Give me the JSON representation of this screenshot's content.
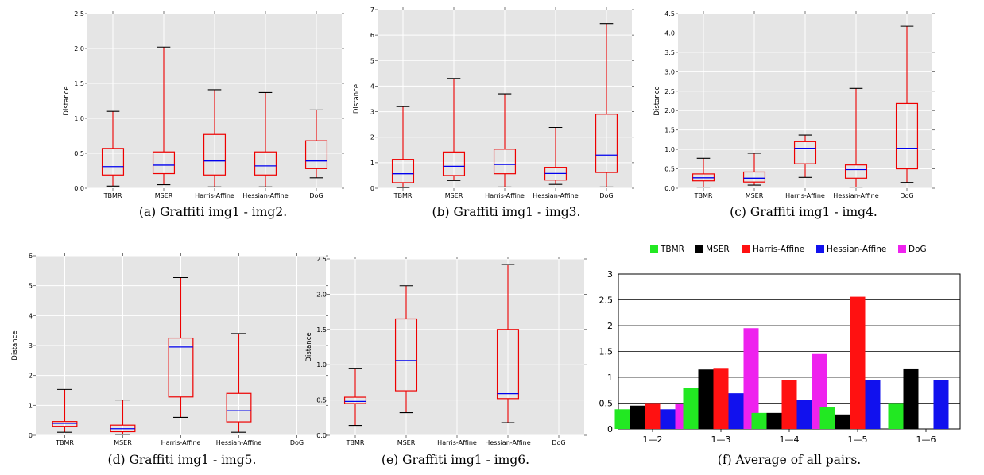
{
  "chart_data": [
    {
      "id": "a",
      "type": "box",
      "caption": "(a) Graffiti img1 - img2.",
      "ylabel": "Distance",
      "ylim": [
        0,
        2.5
      ],
      "yticks": [
        "0.0",
        "0.5",
        "1.0",
        "1.5",
        "2.0",
        "2.5"
      ],
      "categories": [
        "TBMR",
        "MSER",
        "Harris-Affine",
        "Hessian-Affine",
        "DoG"
      ],
      "boxes": [
        {
          "min": 0.03,
          "q1": 0.19,
          "median": 0.31,
          "q3": 0.57,
          "max": 1.1
        },
        {
          "min": 0.05,
          "q1": 0.21,
          "median": 0.33,
          "q3": 0.52,
          "max": 2.02
        },
        {
          "min": 0.02,
          "q1": 0.19,
          "median": 0.39,
          "q3": 0.77,
          "max": 1.41
        },
        {
          "min": 0.02,
          "q1": 0.19,
          "median": 0.32,
          "q3": 0.52,
          "max": 1.37
        },
        {
          "min": 0.15,
          "q1": 0.28,
          "median": 0.39,
          "q3": 0.68,
          "max": 1.12
        }
      ]
    },
    {
      "id": "b",
      "type": "box",
      "caption": "(b) Graffiti img1 - img3.",
      "ylabel": "Distance",
      "ylim": [
        0,
        7
      ],
      "yticks": [
        "0",
        "1",
        "2",
        "3",
        "4",
        "5",
        "6",
        "7"
      ],
      "categories": [
        "TBMR",
        "MSER",
        "Harris-Affine",
        "Hessian-Affine",
        "DoG"
      ],
      "boxes": [
        {
          "min": 0.03,
          "q1": 0.22,
          "median": 0.57,
          "q3": 1.13,
          "max": 3.2
        },
        {
          "min": 0.3,
          "q1": 0.5,
          "median": 0.86,
          "q3": 1.42,
          "max": 4.3
        },
        {
          "min": 0.05,
          "q1": 0.57,
          "median": 0.93,
          "q3": 1.53,
          "max": 3.7
        },
        {
          "min": 0.15,
          "q1": 0.32,
          "median": 0.58,
          "q3": 0.82,
          "max": 2.38
        },
        {
          "min": 0.05,
          "q1": 0.62,
          "median": 1.3,
          "q3": 2.9,
          "max": 6.45
        }
      ]
    },
    {
      "id": "c",
      "type": "box",
      "caption": "(c) Graffiti img1 - img4.",
      "ylabel": "Distance",
      "ylim": [
        0,
        4.5
      ],
      "yticks": [
        "0.0",
        "0.5",
        "1.0",
        "1.5",
        "2.0",
        "2.5",
        "3.0",
        "3.5",
        "4.0",
        "4.5"
      ],
      "categories": [
        "TBMR",
        "MSER",
        "Harris-Affine",
        "Hessian-Affine",
        "DoG"
      ],
      "boxes": [
        {
          "min": 0.03,
          "q1": 0.19,
          "median": 0.27,
          "q3": 0.37,
          "max": 0.77
        },
        {
          "min": 0.08,
          "q1": 0.16,
          "median": 0.26,
          "q3": 0.42,
          "max": 0.9
        },
        {
          "min": 0.28,
          "q1": 0.63,
          "median": 1.03,
          "q3": 1.2,
          "max": 1.37
        },
        {
          "min": 0.03,
          "q1": 0.26,
          "median": 0.48,
          "q3": 0.6,
          "max": 2.57
        },
        {
          "min": 0.15,
          "q1": 0.5,
          "median": 1.03,
          "q3": 2.18,
          "max": 4.17
        }
      ]
    },
    {
      "id": "d",
      "type": "box",
      "caption": "(d) Graffiti img1 - img5.",
      "ylabel": "Distance",
      "ylim": [
        0,
        6
      ],
      "yticks": [
        "0",
        "1",
        "2",
        "3",
        "4",
        "5",
        "6"
      ],
      "categories": [
        "TBMR",
        "MSER",
        "Harris-Affine",
        "Hessian-Affine",
        "DoG"
      ],
      "boxes": [
        {
          "min": 0.1,
          "q1": 0.3,
          "median": 0.4,
          "q3": 0.46,
          "max": 1.53
        },
        {
          "min": 0.03,
          "q1": 0.12,
          "median": 0.22,
          "q3": 0.34,
          "max": 1.18
        },
        {
          "min": 0.6,
          "q1": 1.28,
          "median": 2.95,
          "q3": 3.25,
          "max": 5.27
        },
        {
          "min": 0.1,
          "q1": 0.45,
          "median": 0.82,
          "q3": 1.4,
          "max": 3.4
        },
        null
      ]
    },
    {
      "id": "e",
      "type": "box",
      "caption": "(e) Graffiti img1 - img6.",
      "ylabel": "Distance",
      "ylim": [
        0,
        2.5
      ],
      "yticks": [
        "0.0",
        "0.5",
        "1.0",
        "1.5",
        "2.0",
        "2.5"
      ],
      "categories": [
        "TBMR",
        "MSER",
        "Harris-Affine",
        "Hessian-Affine",
        "DoG"
      ],
      "boxes": [
        {
          "min": 0.14,
          "q1": 0.45,
          "median": 0.48,
          "q3": 0.54,
          "max": 0.95
        },
        {
          "min": 0.32,
          "q1": 0.63,
          "median": 1.06,
          "q3": 1.65,
          "max": 2.12
        },
        null,
        {
          "min": 0.18,
          "q1": 0.52,
          "median": 0.59,
          "q3": 1.5,
          "max": 2.42
        },
        null
      ]
    },
    {
      "id": "f",
      "type": "bar",
      "caption": "(f) Average of all pairs.",
      "ylim": [
        0,
        3
      ],
      "yticks": [
        "0",
        "0.5",
        "1",
        "1.5",
        "2",
        "2.5",
        "3"
      ],
      "categories": [
        "1—2",
        "1—3",
        "1—4",
        "1—5",
        "1—6"
      ],
      "legend_position": "top",
      "series": [
        {
          "name": "TBMR",
          "color": "#22e822",
          "values": [
            0.38,
            0.79,
            0.31,
            0.43,
            0.5
          ]
        },
        {
          "name": "MSER",
          "color": "#000000",
          "values": [
            0.45,
            1.15,
            0.31,
            0.28,
            1.17
          ]
        },
        {
          "name": "Harris-Affine",
          "color": "#ff1111",
          "values": [
            0.5,
            1.18,
            0.94,
            2.56,
            0
          ]
        },
        {
          "name": "Hessian-Affine",
          "color": "#1111ee",
          "values": [
            0.38,
            0.69,
            0.56,
            0.95,
            0.94
          ]
        },
        {
          "name": "DoG",
          "color": "#ee22ee",
          "values": [
            0.48,
            1.95,
            1.45,
            0,
            0
          ]
        }
      ]
    }
  ],
  "colors": {
    "panel_background": "#e5e5e5",
    "box": "#ee0000",
    "median": "#0000ee",
    "whisker_cap": "#000000"
  }
}
